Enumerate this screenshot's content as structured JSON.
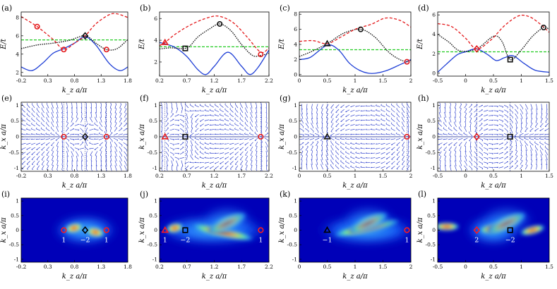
{
  "figure": {
    "row_ylabels": [
      "E/t",
      "k_x a/π",
      "k_x a/π"
    ],
    "xlabel": "k_z a/π",
    "colors": {
      "red": "#e41a1c",
      "black": "#111111",
      "blue": "#1f3fd6",
      "green": "#22cc22",
      "vector": "#1a2ec8"
    },
    "columns": [
      {
        "id": "a",
        "xlim": [
          -0.2,
          1.8
        ],
        "xticks": [
          "-0.2",
          "0.3",
          "0.8",
          "1.3",
          "1.8"
        ],
        "xtick_values": [
          -0.2,
          0.3,
          0.8,
          1.3,
          1.8
        ],
        "band_labels": {
          "top": "(a)",
          "mid": "(e)",
          "bot": "(i)"
        },
        "band": {
          "ylim": [
            1.6,
            8.6
          ],
          "yticks": [
            "2",
            "4",
            "6",
            "8"
          ],
          "ytick_values": [
            2,
            4,
            6,
            8
          ],
          "fermi": 5.55,
          "curves": {
            "red": [
              [
                -0.2,
                8.1
              ],
              [
                0.1,
                7.0
              ],
              [
                0.4,
                5.6
              ],
              [
                0.6,
                4.5
              ],
              [
                0.8,
                5.2
              ],
              [
                1.0,
                6.0
              ],
              [
                1.2,
                7.3
              ],
              [
                1.45,
                8.3
              ],
              [
                1.6,
                8.4
              ],
              [
                1.8,
                8.0
              ]
            ],
            "black": [
              [
                -0.2,
                4.6
              ],
              [
                0.1,
                5.0
              ],
              [
                0.4,
                5.2
              ],
              [
                0.7,
                5.5
              ],
              [
                1.0,
                6.0
              ],
              [
                1.2,
                5.2
              ],
              [
                1.4,
                4.5
              ],
              [
                1.6,
                4.6
              ],
              [
                1.8,
                5.6
              ]
            ],
            "blue": [
              [
                -0.2,
                2.6
              ],
              [
                0.0,
                2.2
              ],
              [
                0.2,
                3.0
              ],
              [
                0.4,
                4.1
              ],
              [
                0.6,
                4.6
              ],
              [
                0.8,
                5.2
              ],
              [
                1.0,
                5.9
              ],
              [
                1.2,
                5.0
              ],
              [
                1.45,
                3.0
              ],
              [
                1.65,
                2.2
              ],
              [
                1.8,
                2.6
              ]
            ]
          },
          "markers": [
            {
              "shape": "circle",
              "color": "red",
              "x": 0.1,
              "y": 7.0
            },
            {
              "shape": "circle",
              "color": "red",
              "x": 0.6,
              "y": 4.5
            },
            {
              "shape": "circle",
              "color": "red",
              "x": 1.4,
              "y": 4.5
            },
            {
              "shape": "diamond",
              "color": "black",
              "x": 1.0,
              "y": 6.0
            }
          ]
        },
        "points": [
          {
            "shape": "circle",
            "color": "red",
            "x": 0.6,
            "charge": "1"
          },
          {
            "shape": "diamond",
            "color": "black",
            "x": 1.0,
            "charge": "−2"
          },
          {
            "shape": "circle",
            "color": "red",
            "x": 1.4,
            "charge": "1"
          }
        ]
      },
      {
        "id": "b",
        "xlim": [
          0.2,
          2.2
        ],
        "xticks": [
          "0.2",
          "0.7",
          "1.2",
          "1.7",
          "2.2"
        ],
        "xtick_values": [
          0.2,
          0.7,
          1.2,
          1.7,
          2.2
        ],
        "band_labels": {
          "top": "(b)",
          "mid": "(f)",
          "bot": "(j)"
        },
        "band": {
          "ylim": [
            0.7,
            6.6
          ],
          "yticks": [
            "2",
            "4",
            "6"
          ],
          "ytick_values": [
            2,
            4,
            6
          ],
          "fermi": 3.4,
          "curves": {
            "red": [
              [
                0.2,
                3.5
              ],
              [
                0.3,
                3.8
              ],
              [
                0.5,
                4.6
              ],
              [
                0.8,
                5.5
              ],
              [
                1.1,
                6.1
              ],
              [
                1.3,
                6.2
              ],
              [
                1.55,
                5.6
              ],
              [
                1.8,
                4.3
              ],
              [
                2.05,
                2.9
              ],
              [
                2.2,
                3.3
              ]
            ],
            "black": [
              [
                0.2,
                3.2
              ],
              [
                0.4,
                3.3
              ],
              [
                0.7,
                3.3
              ],
              [
                0.9,
                4.3
              ],
              [
                1.1,
                5.0
              ],
              [
                1.3,
                5.5
              ],
              [
                1.5,
                4.9
              ],
              [
                1.7,
                3.6
              ],
              [
                1.9,
                2.6
              ],
              [
                2.05,
                2.6
              ],
              [
                2.2,
                2.8
              ]
            ],
            "blue": [
              [
                0.2,
                3.8
              ],
              [
                0.35,
                3.6
              ],
              [
                0.5,
                3.3
              ],
              [
                0.7,
                2.5
              ],
              [
                0.9,
                1.3
              ],
              [
                1.05,
                0.85
              ],
              [
                1.2,
                1.6
              ],
              [
                1.45,
                2.9
              ],
              [
                1.7,
                1.6
              ],
              [
                1.85,
                0.85
              ],
              [
                2.0,
                1.5
              ],
              [
                2.2,
                3.1
              ]
            ]
          },
          "markers": [
            {
              "shape": "triangle",
              "color": "red",
              "x": 0.3,
              "y": 3.8
            },
            {
              "shape": "square",
              "color": "black",
              "x": 0.67,
              "y": 3.25
            },
            {
              "shape": "circle",
              "color": "black",
              "x": 1.3,
              "y": 5.5
            },
            {
              "shape": "circle",
              "color": "red",
              "x": 2.05,
              "y": 2.7
            }
          ]
        },
        "points": [
          {
            "shape": "triangle",
            "color": "red",
            "x": 0.3,
            "charge": "1"
          },
          {
            "shape": "square",
            "color": "black",
            "x": 0.67,
            "charge": "−2"
          },
          {
            "shape": "circle",
            "color": "red",
            "x": 2.05,
            "charge": "1"
          }
        ]
      },
      {
        "id": "c",
        "xlim": [
          0,
          2
        ],
        "xticks": [
          "0",
          "0.5",
          "1",
          "1.5",
          "2"
        ],
        "xtick_values": [
          0,
          0.5,
          1,
          1.5,
          2
        ],
        "band_labels": {
          "top": "(c)",
          "mid": "(g)",
          "bot": "(k)"
        },
        "band": {
          "ylim": [
            -0.2,
            8.3
          ],
          "yticks": [
            "0",
            "2",
            "4",
            "6",
            "8"
          ],
          "ytick_values": [
            0,
            2,
            4,
            6,
            8
          ],
          "fermi": 3.3,
          "curves": {
            "red": [
              [
                0,
                4.4
              ],
              [
                0.25,
                4.5
              ],
              [
                0.5,
                4.1
              ],
              [
                0.75,
                5.0
              ],
              [
                1.0,
                6.0
              ],
              [
                1.3,
                6.7
              ],
              [
                1.55,
                7.5
              ],
              [
                1.8,
                7.2
              ],
              [
                2.0,
                6.3
              ]
            ],
            "black": [
              [
                0,
                2.4
              ],
              [
                0.2,
                3.0
              ],
              [
                0.5,
                4.1
              ],
              [
                0.8,
                5.5
              ],
              [
                1.1,
                6.0
              ],
              [
                1.35,
                5.0
              ],
              [
                1.6,
                3.0
              ],
              [
                1.8,
                2.0
              ],
              [
                1.95,
                1.7
              ],
              [
                2.0,
                1.9
              ]
            ],
            "blue": [
              [
                0,
                2.0
              ],
              [
                0.2,
                2.3
              ],
              [
                0.5,
                3.9
              ],
              [
                0.7,
                3.3
              ],
              [
                0.9,
                1.5
              ],
              [
                1.1,
                0.5
              ],
              [
                1.3,
                0.15
              ],
              [
                1.55,
                0.5
              ],
              [
                1.8,
                1.3
              ],
              [
                1.95,
                1.8
              ],
              [
                2.0,
                2.0
              ]
            ]
          },
          "markers": [
            {
              "shape": "triangle",
              "color": "black",
              "x": 0.5,
              "y": 4.1
            },
            {
              "shape": "circle",
              "color": "black",
              "x": 1.1,
              "y": 6.0
            },
            {
              "shape": "circle",
              "color": "red",
              "x": 1.93,
              "y": 1.7
            }
          ]
        },
        "points": [
          {
            "shape": "triangle",
            "color": "black",
            "x": 0.5,
            "charge": "−1"
          },
          {
            "shape": "circle",
            "color": "red",
            "x": 1.93,
            "charge": "1"
          }
        ]
      },
      {
        "id": "d",
        "xlim": [
          -0.5,
          1.5
        ],
        "xticks": [
          "-0.5",
          "0",
          "0.5",
          "1",
          "1.5"
        ],
        "xtick_values": [
          -0.5,
          0,
          0.5,
          1,
          1.5
        ],
        "band_labels": {
          "top": "(d)",
          "mid": "(h)",
          "bot": "(l)"
        },
        "band": {
          "ylim": [
            -0.3,
            6.3
          ],
          "yticks": [
            "0",
            "2",
            "4",
            "6"
          ],
          "ytick_values": [
            0,
            2,
            4,
            6
          ],
          "fermi": 2.2,
          "curves": {
            "red": [
              [
                -0.5,
                5.1
              ],
              [
                -0.25,
                4.8
              ],
              [
                0.0,
                3.6
              ],
              [
                0.2,
                2.5
              ],
              [
                0.45,
                3.4
              ],
              [
                0.7,
                4.9
              ],
              [
                0.95,
                5.9
              ],
              [
                1.15,
                5.8
              ],
              [
                1.35,
                5.0
              ],
              [
                1.5,
                4.2
              ]
            ],
            "black": [
              [
                -0.5,
                4.0
              ],
              [
                -0.3,
                3.2
              ],
              [
                -0.1,
                2.3
              ],
              [
                0.2,
                2.5
              ],
              [
                0.5,
                3.8
              ],
              [
                0.65,
                3.3
              ],
              [
                0.8,
                1.4
              ],
              [
                1.0,
                2.4
              ],
              [
                1.2,
                3.8
              ],
              [
                1.4,
                4.7
              ],
              [
                1.5,
                4.5
              ]
            ],
            "blue": [
              [
                -0.5,
                0.1
              ],
              [
                -0.35,
                0.9
              ],
              [
                -0.15,
                1.9
              ],
              [
                0.0,
                2.2
              ],
              [
                0.2,
                2.5
              ],
              [
                0.4,
                1.9
              ],
              [
                0.55,
                1.3
              ],
              [
                0.7,
                1.6
              ],
              [
                0.85,
                1.8
              ],
              [
                1.05,
                1.0
              ],
              [
                1.25,
                0.3
              ],
              [
                1.5,
                0.1
              ]
            ]
          },
          "markers": [
            {
              "shape": "diamond",
              "color": "red",
              "x": 0.2,
              "y": 2.5
            },
            {
              "shape": "square",
              "color": "black",
              "x": 0.8,
              "y": 1.4
            },
            {
              "shape": "circle",
              "color": "black",
              "x": 1.4,
              "y": 4.7
            }
          ]
        },
        "points": [
          {
            "shape": "diamond",
            "color": "red",
            "x": 0.2,
            "charge": "2"
          },
          {
            "shape": "square",
            "color": "black",
            "x": 0.8,
            "charge": "−2"
          }
        ]
      }
    ],
    "vector_field_yticks": [
      "1",
      "0.5",
      "0",
      "-0.5",
      "-1"
    ],
    "vector_field_ytick_values": [
      1,
      0.5,
      0,
      -0.5,
      -1
    ],
    "berry_yticks": [
      "1",
      "0.5",
      "0",
      "-0.5",
      "-1"
    ],
    "berry_ytick_values": [
      1,
      0.5,
      0,
      -0.5,
      -1
    ]
  }
}
